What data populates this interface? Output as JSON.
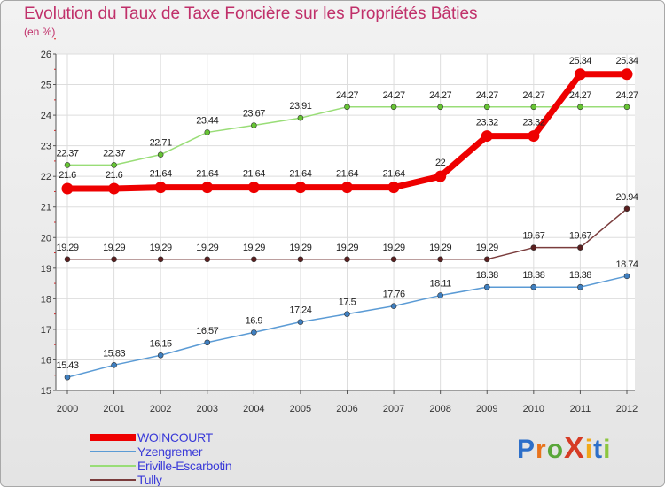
{
  "title": "Evolution du Taux de Taxe Foncière sur les Propriétés Bâties",
  "unit_label": "(en %)",
  "logo": {
    "text": "ProXiti",
    "colors": [
      "#2d6fc9",
      "#e8731c",
      "#5aa73a",
      "#d63b25",
      "#f0a81a",
      "#2d6fc9",
      "#8cc63f"
    ]
  },
  "chart_data": {
    "type": "line",
    "x": [
      2000,
      2001,
      2002,
      2003,
      2004,
      2005,
      2006,
      2007,
      2008,
      2009,
      2010,
      2011,
      2012
    ],
    "ylim": [
      15,
      26
    ],
    "yticks": [
      15,
      16,
      17,
      18,
      19,
      20,
      21,
      22,
      23,
      24,
      25,
      26
    ],
    "grid": true,
    "series": [
      {
        "name": "Yzengremer",
        "color": "#5b9bd5",
        "dot": "#3f7fc0",
        "width": 1.5,
        "values": [
          15.43,
          15.83,
          16.15,
          16.57,
          16.9,
          17.24,
          17.5,
          17.76,
          18.11,
          18.38,
          18.38,
          18.38,
          18.74
        ],
        "labels": [
          "15.43",
          "15.83",
          "16.15",
          "16.57",
          "16.9",
          "17.24",
          "17.5",
          "17.76",
          "18.11",
          "18.38",
          "18.38",
          "18.38",
          "18.74"
        ]
      },
      {
        "name": "Eriville-Escarbotin",
        "color": "#99dd77",
        "dot": "#66c433",
        "width": 1.5,
        "values": [
          22.37,
          22.37,
          22.71,
          23.44,
          23.67,
          23.91,
          24.27,
          24.27,
          24.27,
          24.27,
          24.27,
          24.27,
          24.27
        ],
        "labels": [
          "22.37",
          "22.37",
          "22.71",
          "23.44",
          "23.67",
          "23.91",
          "24.27",
          "24.27",
          "24.27",
          "24.27",
          "24.27",
          "24.27",
          "24.27"
        ]
      },
      {
        "name": "Tully",
        "color": "#7a3c3c",
        "dot": "#5a1f1f",
        "width": 1.5,
        "values": [
          19.29,
          19.29,
          19.29,
          19.29,
          19.29,
          19.29,
          19.29,
          19.29,
          19.29,
          19.29,
          19.67,
          19.67,
          20.94
        ],
        "labels": [
          "19.29",
          "19.29",
          "19.29",
          "19.29",
          "19.29",
          "19.29",
          "19.29",
          "19.29",
          "19.29",
          "19.29",
          "19.67",
          "19.67",
          "20.94"
        ]
      },
      {
        "name": "WOINCOURT",
        "color": "#ee0000",
        "dot": "#ee0000",
        "width": 7,
        "values": [
          21.6,
          21.6,
          21.64,
          21.64,
          21.64,
          21.64,
          21.64,
          21.64,
          22,
          23.32,
          23.32,
          25.34,
          25.34
        ],
        "labels": [
          "21.6",
          "21.6",
          "21.64",
          "21.64",
          "21.64",
          "21.64",
          "21.64",
          "21.64",
          "22",
          "23.32",
          "23.32",
          "25.34",
          "25.34"
        ]
      }
    ],
    "legend_order": [
      "WOINCOURT",
      "Yzengremer",
      "Eriville-Escarbotin",
      "Tully"
    ]
  }
}
